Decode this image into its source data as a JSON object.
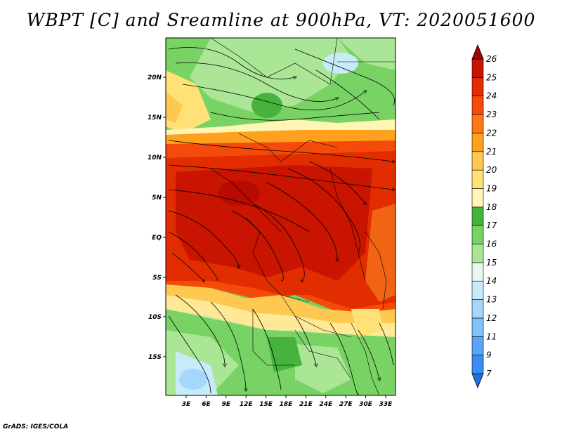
{
  "title": "WBPT [C] and Sreamline at 900hPa, VT: 2020051600",
  "footer": "GrADS: IGES/COLA",
  "map": {
    "lat_labels": [
      "20N",
      "15N",
      "10N",
      "5N",
      "EQ",
      "5S",
      "10S",
      "15S"
    ],
    "lon_labels": [
      "3E",
      "6E",
      "9E",
      "12E",
      "15E",
      "18E",
      "21E",
      "24E",
      "27E",
      "30E",
      "33E"
    ]
  },
  "colorbar": {
    "levels": [
      "7",
      "9",
      "11",
      "12",
      "13",
      "14",
      "15",
      "16",
      "17",
      "18",
      "19",
      "20",
      "21",
      "22",
      "23",
      "24",
      "25",
      "26"
    ],
    "colors": [
      "#1e6ee0",
      "#3c8cf0",
      "#5aa5f5",
      "#82c3fa",
      "#a5d7fa",
      "#c8ebfa",
      "#e6f8f0",
      "#aae696",
      "#78d264",
      "#46b43c",
      "#fff5b4",
      "#ffe178",
      "#ffc850",
      "#ffa01e",
      "#ff7814",
      "#f54b0a",
      "#e12d00",
      "#c81400",
      "#a50000"
    ]
  },
  "colors": {
    "hot": "#d22d0a",
    "warm": "#f06414",
    "green": "#6ed25a"
  }
}
